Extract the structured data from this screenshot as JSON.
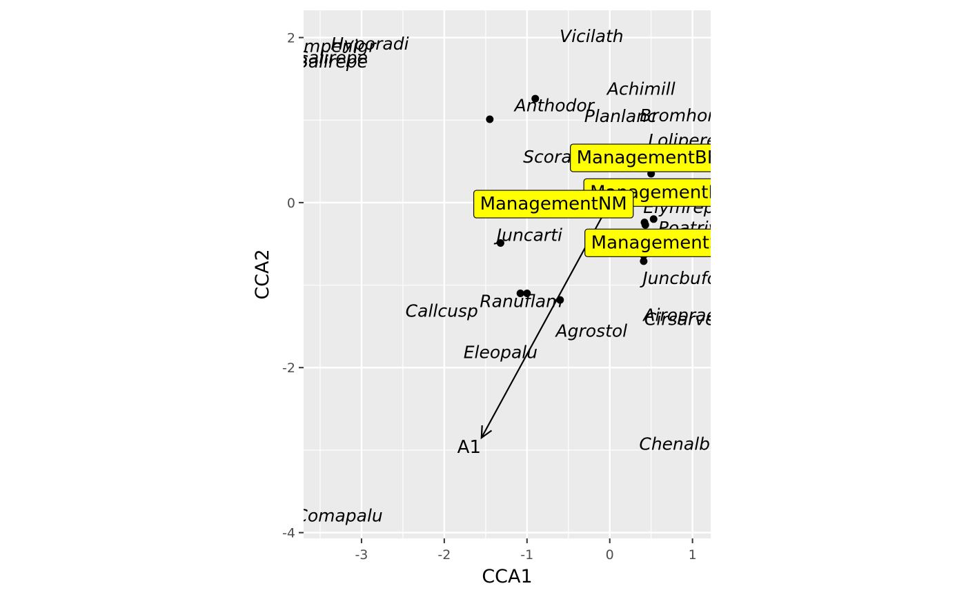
{
  "chart_data": {
    "type": "scatter",
    "title": "",
    "xlabel": "CCA1",
    "ylabel": "CCA2",
    "xlim": [
      -3.7,
      1.22
    ],
    "ylim": [
      -4.07,
      2.33
    ],
    "xticks": [
      -3,
      -2,
      -1,
      0,
      1
    ],
    "yticks": [
      -4,
      -2,
      0,
      2
    ],
    "xtick_labels": [
      "-3",
      "-2",
      "-1",
      "0",
      "1"
    ],
    "ytick_labels": [
      "-4",
      "-2",
      "0",
      "2"
    ],
    "grid": true,
    "colors": {
      "panel": "#ebebeb",
      "grid": "#ffffff",
      "points": "#000000",
      "factor_fill": "#ffff00",
      "arrow": "#000000"
    },
    "sites": [
      {
        "x": -0.9,
        "y": 1.26
      },
      {
        "x": -1.45,
        "y": 1.01
      },
      {
        "x": 0.5,
        "y": 0.35
      },
      {
        "x": 0.42,
        "y": -0.24
      },
      {
        "x": 0.53,
        "y": -0.2
      },
      {
        "x": 0.43,
        "y": -0.27
      },
      {
        "x": -1.32,
        "y": -0.49
      },
      {
        "x": 0.41,
        "y": -0.64
      },
      {
        "x": 0.41,
        "y": -0.71
      },
      {
        "x": -1.08,
        "y": -1.1
      },
      {
        "x": -1.0,
        "y": -1.1
      },
      {
        "x": -0.6,
        "y": -1.18
      }
    ],
    "species": [
      {
        "name": "Vicilath",
        "x": -0.22,
        "y": 2.02
      },
      {
        "name": "Empenigr",
        "x": -3.33,
        "y": 1.9
      },
      {
        "name": "Hyporadi",
        "x": -2.9,
        "y": 1.93
      },
      {
        "name": "Salirepe",
        "x": -3.35,
        "y": 1.76
      },
      {
        "name": "Salirepe",
        "x": -3.35,
        "y": 1.71
      },
      {
        "name": "Achimill",
        "x": 0.38,
        "y": 1.38
      },
      {
        "name": "Anthodor",
        "x": -0.67,
        "y": 1.18
      },
      {
        "name": "Planlanc",
        "x": 0.13,
        "y": 1.05
      },
      {
        "name": "Bromhord",
        "x": 0.88,
        "y": 1.06
      },
      {
        "name": "Lolipere",
        "x": 0.88,
        "y": 0.76
      },
      {
        "name": "Scorautu",
        "x": -0.58,
        "y": 0.56
      },
      {
        "name": "Elymrepe",
        "x": 0.9,
        "y": -0.05
      },
      {
        "name": "Poatriv",
        "x": 0.95,
        "y": -0.3
      },
      {
        "name": "Juncarti",
        "x": -0.97,
        "y": -0.39
      },
      {
        "name": "Juncbufo",
        "x": 0.85,
        "y": -0.91
      },
      {
        "name": "Ranuflam",
        "x": -1.07,
        "y": -1.19
      },
      {
        "name": "Callcusp",
        "x": -2.03,
        "y": -1.31
      },
      {
        "name": "Agrostol",
        "x": -0.22,
        "y": -1.55
      },
      {
        "name": "Airoprae",
        "x": 0.85,
        "y": -1.36
      },
      {
        "name": "Cirsarve",
        "x": 0.85,
        "y": -1.41
      },
      {
        "name": "Eleopalu",
        "x": -1.32,
        "y": -1.81
      },
      {
        "name": "Chenalbu",
        "x": 0.85,
        "y": -2.92
      },
      {
        "name": "Comapalu",
        "x": -3.27,
        "y": -3.79
      }
    ],
    "env_vectors": [
      {
        "name": "A1",
        "x0": 0.0,
        "y0": 0.0,
        "x1": -1.55,
        "y1": -2.85,
        "label_x": -1.7,
        "label_y": -2.96
      }
    ],
    "factor_centroids": [
      {
        "name": "ManagementBF",
        "x": 0.45,
        "y": 0.55
      },
      {
        "name": "ManagementHF",
        "x": 0.62,
        "y": 0.13
      },
      {
        "name": "ManagementNM",
        "x": -0.68,
        "y": -0.01
      },
      {
        "name": "ManagementSF",
        "x": 0.62,
        "y": -0.48
      }
    ]
  }
}
